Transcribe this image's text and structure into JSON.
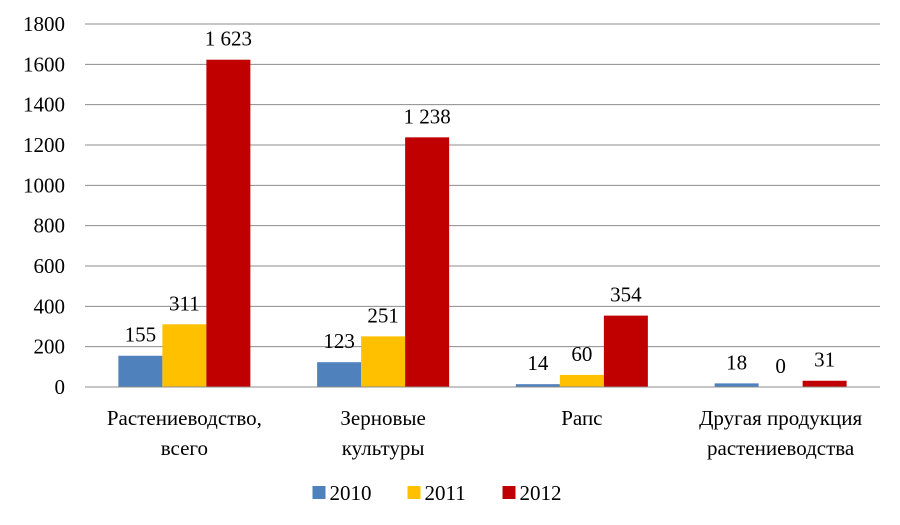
{
  "chart_data": {
    "type": "bar",
    "categories": [
      [
        "Растениеводство,",
        "всего"
      ],
      [
        "Зерновые",
        "культуры"
      ],
      [
        "Рапс"
      ],
      [
        "Другая продукция",
        "растениеводства"
      ]
    ],
    "series": [
      {
        "name": "2010",
        "color": "#4f81bd",
        "values": [
          155,
          123,
          14,
          18
        ],
        "labels": [
          "155",
          "123",
          "14",
          "18"
        ]
      },
      {
        "name": "2011",
        "color": "#ffc000",
        "values": [
          311,
          251,
          60,
          0
        ],
        "labels": [
          "311",
          "251",
          "60",
          "0"
        ]
      },
      {
        "name": "2012",
        "color": "#c00000",
        "values": [
          1623,
          1238,
          354,
          31
        ],
        "labels": [
          "1 623",
          "1 238",
          "354",
          "31"
        ]
      }
    ],
    "ylim": [
      0,
      1800
    ],
    "yticks": [
      0,
      200,
      400,
      600,
      800,
      1000,
      1200,
      1400,
      1600,
      1800
    ],
    "grid": true,
    "legend_position": "bottom"
  }
}
